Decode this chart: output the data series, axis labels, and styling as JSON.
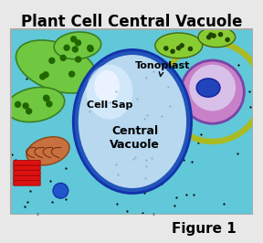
{
  "title": "Plant Cell Central Vacuole",
  "figure_label": "Figure 1",
  "bg_color": "#5bbcd6",
  "border_color": "#3a8fa8",
  "vacuole_outer_color": "#2255bb",
  "vacuole_inner_color": "#c8dff5",
  "vacuole_highlight": "#e8f4ff",
  "label_tonoplast": "Tonoplast",
  "label_cell_sap": "Cell Sap",
  "label_central_vacuole": "Central\nVacuole",
  "title_fontsize": 12,
  "fig_label_fontsize": 11,
  "annotation_fontsize": 8,
  "figsize": [
    2.88,
    2.66
  ],
  "dpi": 100
}
